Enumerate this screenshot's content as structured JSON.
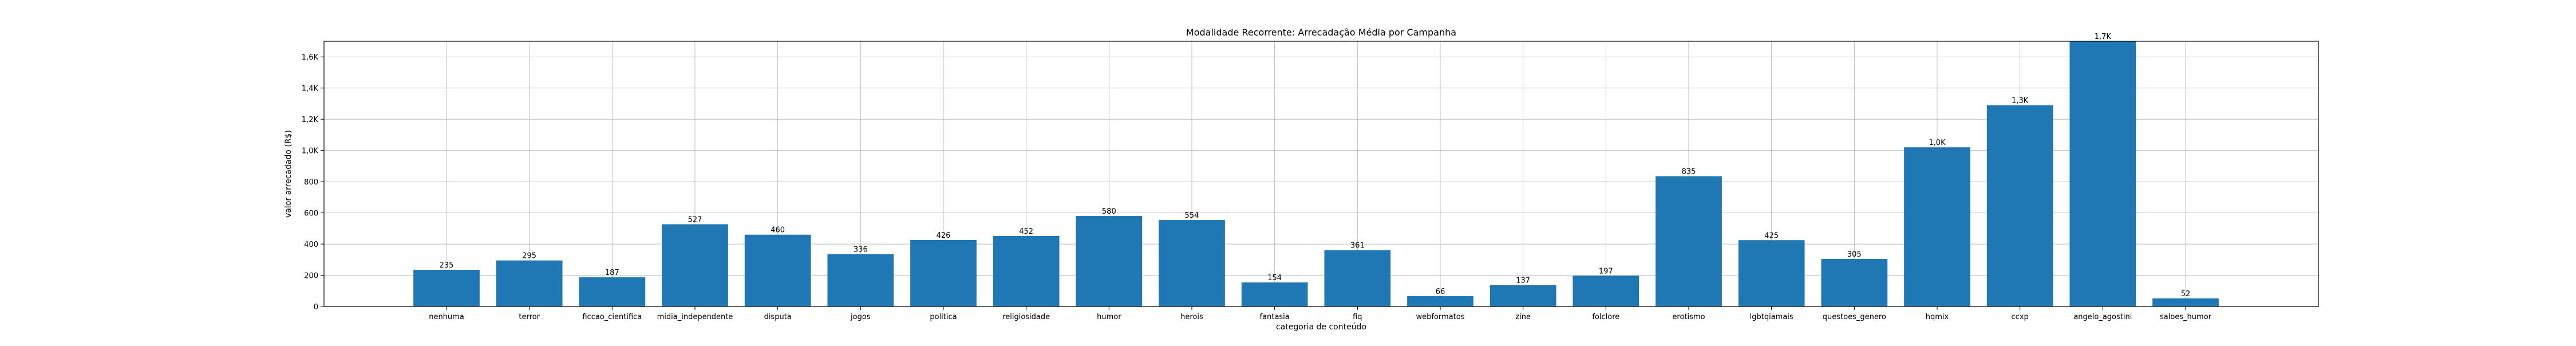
{
  "chart_data": {
    "type": "bar",
    "title": "Modalidade Recorrente: Arrecadação Média por Campanha",
    "xlabel": "categoria de conteúdo",
    "ylabel": "valor arrecadado (R$)",
    "categories": [
      "nenhuma",
      "terror",
      "ficcao_cientifica",
      "midia_independente",
      "disputa",
      "jogos",
      "politica",
      "religiosidade",
      "humor",
      "herois",
      "fantasia",
      "fiq",
      "webformatos",
      "zine",
      "folclore",
      "erotismo",
      "lgbtqiamais",
      "questoes_genero",
      "hqmix",
      "ccxp",
      "angelo_agostini",
      "saloes_humor"
    ],
    "values": [
      235,
      295,
      187,
      527,
      460,
      336,
      426,
      452,
      580,
      554,
      154,
      361,
      66,
      137,
      197,
      835,
      425,
      305,
      1020,
      1290,
      1700,
      52
    ],
    "data_labels": [
      "235",
      "295",
      "187",
      "527",
      "460",
      "336",
      "426",
      "452",
      "580",
      "554",
      "154",
      "361",
      "66",
      "137",
      "197",
      "835",
      "425",
      "305",
      "1,0K",
      "1,3K",
      "1,7K",
      "52"
    ],
    "yticks": [
      0,
      200,
      400,
      600,
      800,
      1000,
      1200,
      1400,
      1600
    ],
    "ytick_labels": [
      "0",
      "200",
      "400",
      "600",
      "800",
      "1,0K",
      "1,2K",
      "1,4K",
      "1,6K"
    ],
    "ylim": [
      0,
      1700
    ],
    "grid": true,
    "bar_color": "#1f77b4",
    "grid_color": "#b0b0b0"
  }
}
